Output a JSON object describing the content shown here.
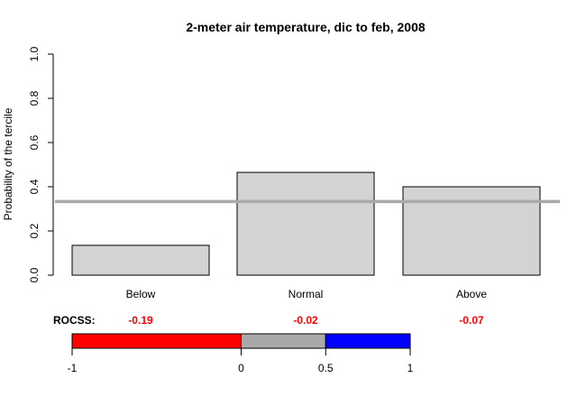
{
  "chart_data": {
    "type": "bar",
    "title": "2-meter air temperature, dic to feb, 2008",
    "ylabel": "Probability of the tercile",
    "xlabel": "",
    "categories": [
      "Below",
      "Normal",
      "Above"
    ],
    "values": [
      0.135,
      0.465,
      0.4
    ],
    "ylim": [
      0,
      1.0
    ],
    "yticks": [
      "0.0",
      "0.2",
      "0.4",
      "0.6",
      "0.8",
      "1.0"
    ],
    "reference_line": 0.333,
    "bar_color": "#d3d3d3",
    "reference_line_color": "#a9a9a9",
    "grid": false,
    "rocss": {
      "label": "ROCSS:",
      "values": [
        "-0.19",
        "-0.02",
        "-0.07"
      ],
      "value_color": "#ff0000"
    },
    "colorbar": {
      "ticks": [
        "-1",
        "0",
        "0.5",
        "1"
      ],
      "tick_values": [
        -1,
        0,
        0.5,
        1
      ],
      "segments": [
        {
          "from": -1,
          "to": 0,
          "color": "#ff0000"
        },
        {
          "from": 0,
          "to": 0.5,
          "color": "#a9a9a9"
        },
        {
          "from": 0.5,
          "to": 1,
          "color": "#0000ff"
        }
      ]
    }
  }
}
